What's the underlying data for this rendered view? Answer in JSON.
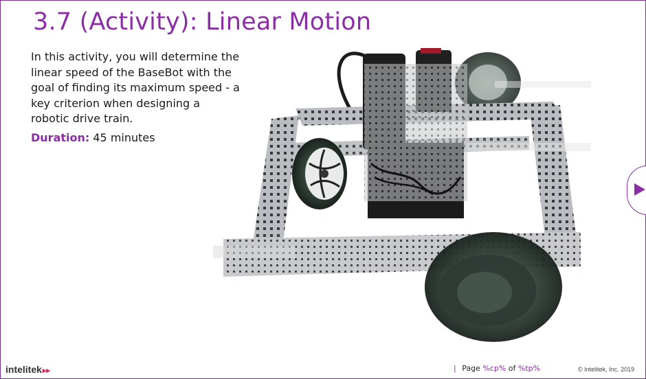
{
  "slide": {
    "title": "3.7 (Activity): Linear Motion",
    "intro": "In this activity, you will determine the linear speed of the BaseBot with the goal of finding its maximum speed - a key criterion when designing a robotic drive train.",
    "duration_label": "Duration:",
    "duration_value": "45 minutes"
  },
  "image": {
    "subject": "basebot-robot"
  },
  "navigation": {
    "next_icon": "play-triangle-icon"
  },
  "footer": {
    "logo_text": "intelitek",
    "logo_arrows": "▸▸",
    "page_prefix": "Page",
    "page_current": "%cp%",
    "page_sep": "of",
    "page_total": "%tp%",
    "copyright": "© Intelitek, Inc. 2019"
  },
  "colors": {
    "accent": "#8a2ea3",
    "brand_red": "#d2235b"
  }
}
